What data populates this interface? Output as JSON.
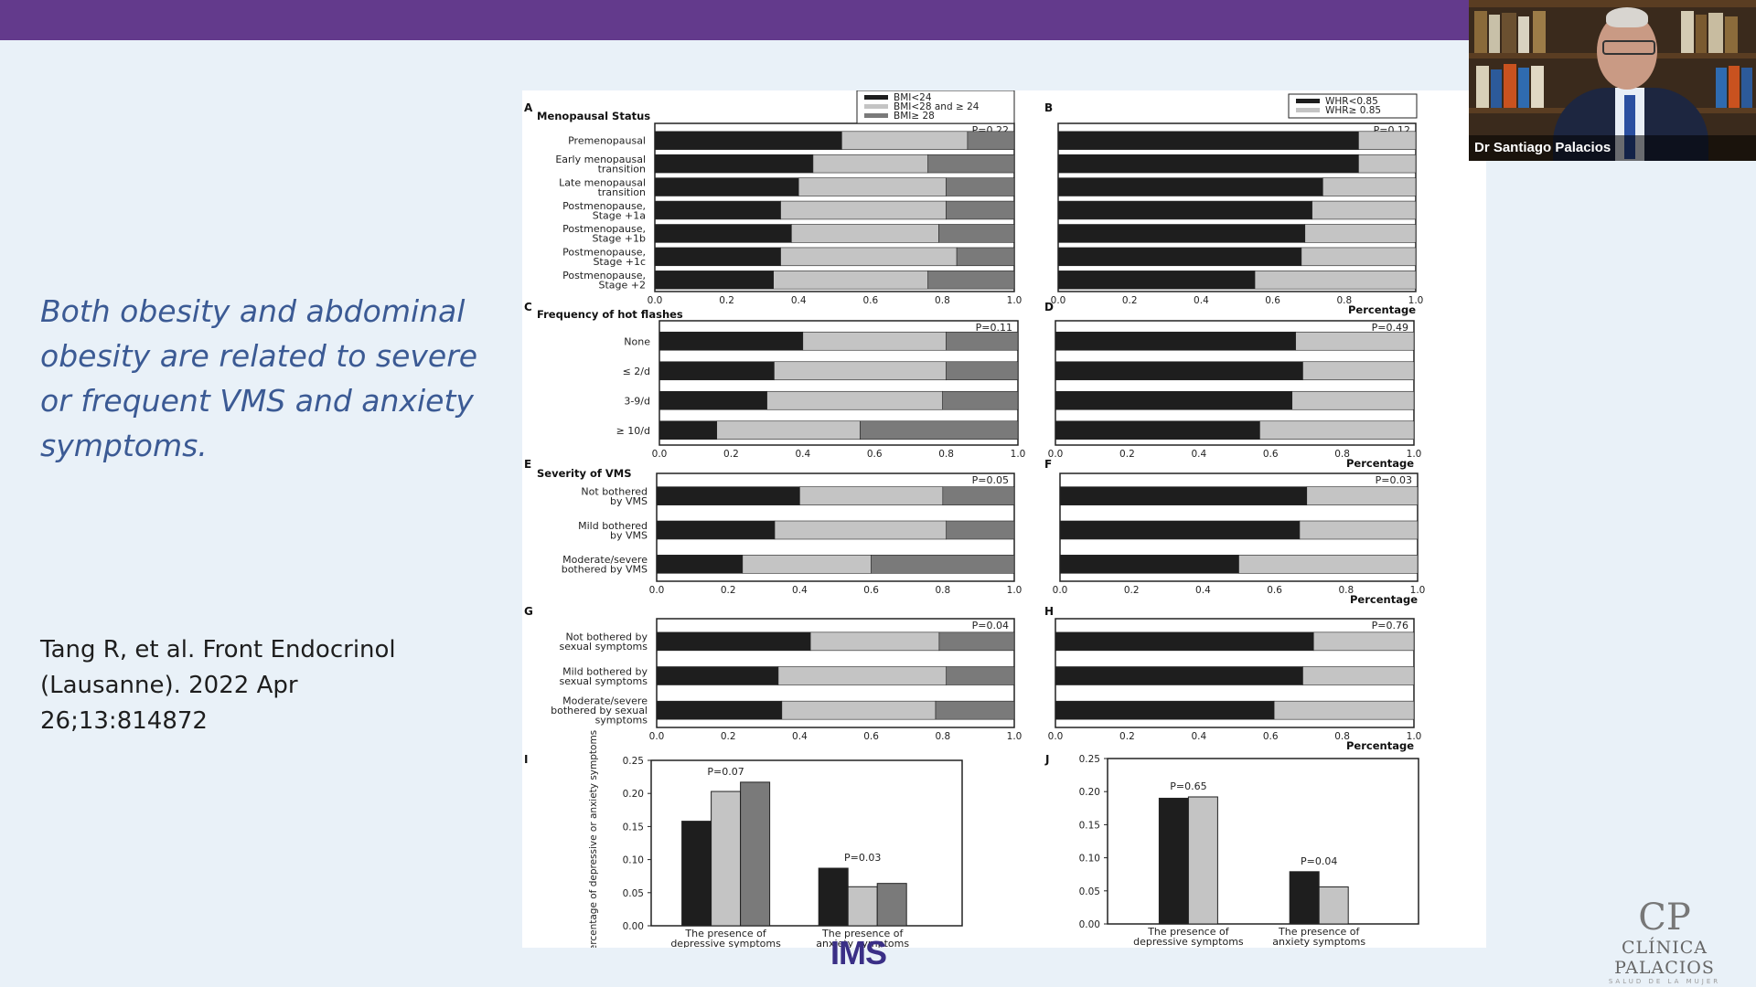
{
  "slide": {
    "quote": "Both obesity and abdominal obesity are related to severe or frequent VMS and anxiety symptoms.",
    "citation": "Tang R, et al. Front Endocrinol (Lausanne). 2022 Apr 26;13:814872",
    "footer_logo": "IMS",
    "colors": {
      "top_bar": "#633a8c",
      "background": "#e9f1f8",
      "quote_text": "#3b5a94"
    }
  },
  "video": {
    "speaker_name": "Dr Santiago Palacios"
  },
  "clinic_logo": {
    "monogram": "CP",
    "name": "CLÍNICA PALACIOS",
    "tagline": "SALUD DE LA MUJER"
  },
  "chart_data": {
    "colors": {
      "c1": "#1e1e1e",
      "c2": "#c4c4c4",
      "c3": "#7a7a7a",
      "border": "#222222"
    },
    "xlabel": "Percentage",
    "ticks": [
      "0.0",
      "0.2",
      "0.4",
      "0.6",
      "0.8",
      "1.0"
    ],
    "legend_bmi": [
      "BMI<24",
      "BMI<28 and ≥ 24",
      "BMI≥ 28"
    ],
    "legend_whr": [
      "WHR<0.85",
      "WHR≥ 0.85"
    ],
    "panels": [
      {
        "id": "A",
        "title": "Menopausal Status",
        "type": "stacked-bar",
        "p": "P=0.22",
        "categories": [
          [
            "Premenopausal"
          ],
          [
            "Early menopausal",
            "transition"
          ],
          [
            "Late menopausal",
            "transition"
          ],
          [
            "Postmenopause,",
            "Stage +1a"
          ],
          [
            "Postmenopause,",
            "Stage +1b"
          ],
          [
            "Postmenopause,",
            "Stage +1c"
          ],
          [
            "Postmenopause,",
            "Stage +2"
          ]
        ],
        "values": [
          [
            0.52,
            0.35,
            0.13
          ],
          [
            0.44,
            0.32,
            0.24
          ],
          [
            0.4,
            0.41,
            0.19
          ],
          [
            0.35,
            0.46,
            0.19
          ],
          [
            0.38,
            0.41,
            0.21
          ],
          [
            0.35,
            0.49,
            0.16
          ],
          [
            0.33,
            0.43,
            0.24
          ]
        ]
      },
      {
        "id": "B",
        "title": "",
        "type": "stacked-bar",
        "p": "P=0.12",
        "categories": [
          [
            "Premenopausal"
          ],
          [
            "Early menopausal",
            "transition"
          ],
          [
            "Late menopausal",
            "transition"
          ],
          [
            "Postmenopause,",
            "Stage +1a"
          ],
          [
            "Postmenopause,",
            "Stage +1b"
          ],
          [
            "Postmenopause,",
            "Stage +1c"
          ],
          [
            "Postmenopause,",
            "Stage +2"
          ]
        ],
        "values": [
          [
            0.84,
            0.16
          ],
          [
            0.84,
            0.16
          ],
          [
            0.74,
            0.26
          ],
          [
            0.71,
            0.29
          ],
          [
            0.69,
            0.31
          ],
          [
            0.68,
            0.32
          ],
          [
            0.55,
            0.45
          ]
        ]
      },
      {
        "id": "C",
        "title": "Frequency of hot flashes",
        "type": "stacked-bar",
        "p": "P=0.11",
        "categories": [
          [
            "None"
          ],
          [
            "≤ 2/d"
          ],
          [
            "3-9/d"
          ],
          [
            "≥ 10/d"
          ]
        ],
        "values": [
          [
            0.4,
            0.4,
            0.2
          ],
          [
            0.32,
            0.48,
            0.2
          ],
          [
            0.3,
            0.49,
            0.21
          ],
          [
            0.16,
            0.4,
            0.44
          ]
        ]
      },
      {
        "id": "D",
        "title": "",
        "type": "stacked-bar",
        "p": "P=0.49",
        "categories": [
          [
            "None"
          ],
          [
            "≤ 2/d"
          ],
          [
            "3-9/d"
          ],
          [
            "≥ 10/d"
          ]
        ],
        "values": [
          [
            0.67,
            0.33
          ],
          [
            0.69,
            0.31
          ],
          [
            0.66,
            0.34
          ],
          [
            0.57,
            0.43
          ]
        ]
      },
      {
        "id": "E",
        "title": "Severity of VMS",
        "type": "stacked-bar",
        "p": "P=0.05",
        "categories": [
          [
            "Not bothered",
            "by VMS"
          ],
          [
            "Mild bothered",
            "by VMS"
          ],
          [
            "Moderate/severe",
            "bothered by VMS"
          ]
        ],
        "values": [
          [
            0.4,
            0.4,
            0.2
          ],
          [
            0.33,
            0.48,
            0.19
          ],
          [
            0.24,
            0.36,
            0.4
          ]
        ]
      },
      {
        "id": "F",
        "title": "",
        "type": "stacked-bar",
        "p": "P=0.03",
        "categories": [
          [
            "Not bothered",
            "by VMS"
          ],
          [
            "Mild bothered",
            "by VMS"
          ],
          [
            "Moderate/severe",
            "bothered by VMS"
          ]
        ],
        "values": [
          [
            0.69,
            0.31
          ],
          [
            0.67,
            0.33
          ],
          [
            0.5,
            0.5
          ]
        ]
      },
      {
        "id": "G",
        "title": "",
        "type": "stacked-bar",
        "p": "P=0.04",
        "categories": [
          [
            "Not bothered by",
            "sexual symptoms"
          ],
          [
            "Mild bothered by",
            "sexual symptoms"
          ],
          [
            "Moderate/severe",
            "bothered by sexual",
            "symptoms"
          ]
        ],
        "values": [
          [
            0.43,
            0.36,
            0.21
          ],
          [
            0.34,
            0.47,
            0.19
          ],
          [
            0.35,
            0.43,
            0.22
          ]
        ]
      },
      {
        "id": "H",
        "title": "",
        "type": "stacked-bar",
        "p": "P=0.76",
        "categories": [
          [
            "Not bothered by",
            "sexual symptoms"
          ],
          [
            "Mild bothered by",
            "sexual symptoms"
          ],
          [
            "Moderate/severe",
            "bothered by sexual",
            "symptoms"
          ]
        ],
        "values": [
          [
            0.72,
            0.28
          ],
          [
            0.69,
            0.31
          ],
          [
            0.61,
            0.39
          ]
        ]
      },
      {
        "id": "I",
        "type": "bar",
        "ylabel": "Percentage of depressive or anxiety symptoms",
        "ylim": [
          0,
          0.25
        ],
        "yticks": [
          "0.00",
          "0.05",
          "0.10",
          "0.15",
          "0.20",
          "0.25"
        ],
        "categories": [
          [
            "The presence of",
            "depressive symptoms"
          ],
          [
            "The presence of",
            "anxiety symptoms"
          ]
        ],
        "values": [
          [
            0.158,
            0.203,
            0.217
          ],
          [
            0.087,
            0.059,
            0.064
          ]
        ],
        "p": [
          "P=0.07",
          "P=0.03"
        ]
      },
      {
        "id": "J",
        "type": "bar",
        "ylabel": "",
        "ylim": [
          0,
          0.25
        ],
        "yticks": [
          "0.00",
          "0.05",
          "0.10",
          "0.15",
          "0.20",
          "0.25"
        ],
        "categories": [
          [
            "The presence of",
            "depressive symptoms"
          ],
          [
            "The presence of",
            "anxiety symptoms"
          ]
        ],
        "values": [
          [
            0.19,
            0.192
          ],
          [
            0.079,
            0.056
          ]
        ],
        "p": [
          "P=0.65",
          "P=0.04"
        ]
      }
    ]
  }
}
